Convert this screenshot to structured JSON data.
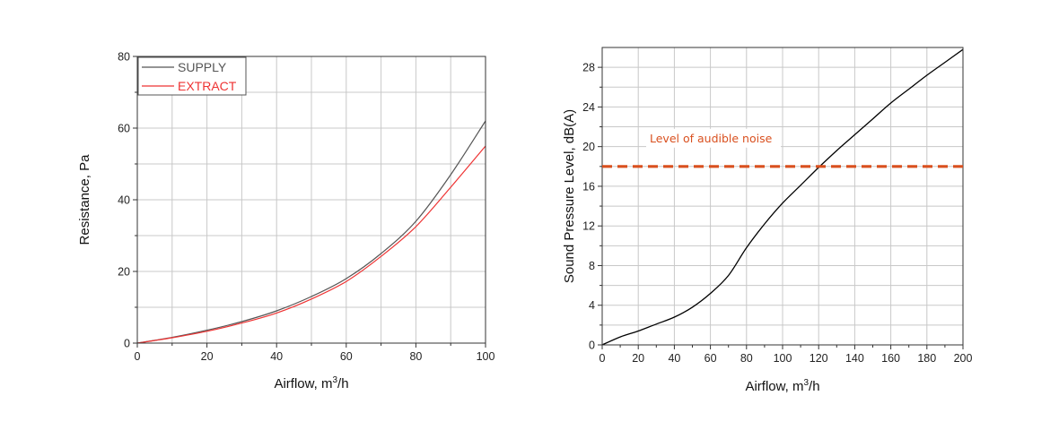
{
  "chart_data": [
    {
      "type": "line",
      "xlabel": "Airflow, m",
      "xlabel_sup": "3",
      "xlabel_tail": "/h",
      "ylabel": "Resistance, Pa",
      "xlim": [
        0,
        100
      ],
      "ylim": [
        0,
        80
      ],
      "x_ticks": [
        0,
        20,
        40,
        60,
        80,
        100
      ],
      "y_ticks": [
        0,
        20,
        40,
        60,
        80
      ],
      "grid": true,
      "legend": "top-left",
      "series": [
        {
          "name": "SUPPLY",
          "color": "#555555",
          "x": [
            0,
            10,
            20,
            30,
            40,
            50,
            60,
            70,
            80,
            90,
            100
          ],
          "y": [
            0,
            1.6,
            3.6,
            6.0,
            9.0,
            13.0,
            18.0,
            25.0,
            34.0,
            47.0,
            62.0
          ]
        },
        {
          "name": "EXTRACT",
          "color": "#ee3333",
          "x": [
            0,
            10,
            20,
            30,
            40,
            50,
            60,
            70,
            80,
            90,
            100
          ],
          "y": [
            0,
            1.5,
            3.3,
            5.6,
            8.4,
            12.3,
            17.2,
            24.2,
            32.5,
            43.5,
            55.0
          ]
        }
      ]
    },
    {
      "type": "line",
      "xlabel": "Airflow, m",
      "xlabel_sup": "3",
      "xlabel_tail": "/h",
      "ylabel": "Sound Pressure Level, dB(A)",
      "xlim": [
        0,
        200
      ],
      "ylim": [
        0,
        30
      ],
      "x_ticks": [
        0,
        20,
        40,
        60,
        80,
        100,
        120,
        140,
        160,
        180,
        200
      ],
      "y_ticks": [
        0,
        4,
        8,
        12,
        16,
        20,
        24,
        28
      ],
      "grid": true,
      "series": [
        {
          "color": "#000000",
          "x": [
            0,
            10,
            20,
            30,
            40,
            50,
            60,
            70,
            80,
            90,
            100,
            110,
            120,
            130,
            140,
            150,
            160,
            170,
            180,
            190,
            200
          ],
          "y": [
            0,
            0.8,
            1.4,
            2.1,
            2.8,
            3.8,
            5.2,
            7.0,
            9.8,
            12.2,
            14.3,
            16.1,
            17.9,
            19.6,
            21.2,
            22.8,
            24.4,
            25.8,
            27.2,
            28.5,
            29.8
          ]
        }
      ],
      "reference_line": {
        "y": 18,
        "color": "#d9501f",
        "style": "dashed",
        "label": "Level of audible noise"
      }
    }
  ]
}
